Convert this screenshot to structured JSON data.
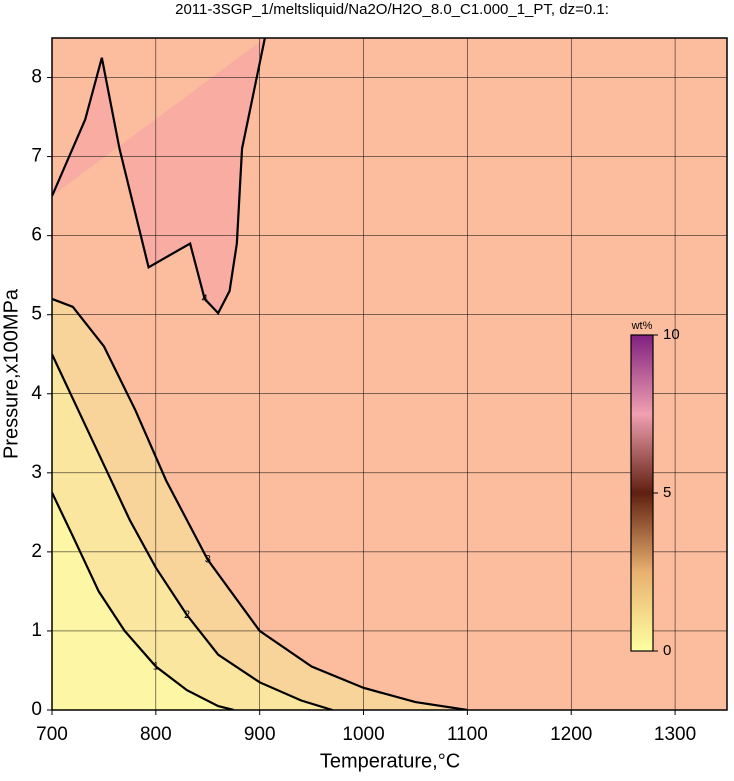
{
  "chart_data": {
    "type": "contour",
    "title": "2011-3SGP_1/meltsliquid/Na2O/H2O_8.0_C1.000_1_PT, dz=0.1:",
    "x_label": "Temperature,°C",
    "y_label": "Pressure,x100MPa",
    "xlim": [
      700,
      1350
    ],
    "ylim": [
      0,
      8.5
    ],
    "xticks": [
      700,
      800,
      900,
      1000,
      1100,
      1200,
      1300
    ],
    "yticks": [
      0,
      1,
      2,
      3,
      4,
      5,
      6,
      7,
      8
    ],
    "grid": true,
    "background": "#fcbd9f",
    "contours": [
      {
        "level": 3,
        "fill": "#f8d49a",
        "closed": false,
        "x": [
          700,
          720,
          750,
          780,
          810,
          850,
          900,
          950,
          1000,
          1050,
          1100
        ],
        "y": [
          5.2,
          5.1,
          4.6,
          3.8,
          2.9,
          1.9,
          1.0,
          0.55,
          0.28,
          0.1,
          0
        ]
      },
      {
        "level": 2,
        "fill": "#fbe6a0",
        "closed": false,
        "x": [
          700,
          725,
          750,
          775,
          800,
          830,
          860,
          900,
          940,
          970
        ],
        "y": [
          4.5,
          3.8,
          3.1,
          2.4,
          1.8,
          1.2,
          0.7,
          0.35,
          0.12,
          0
        ]
      },
      {
        "level": 1,
        "fill": "#fdf6a4",
        "closed": false,
        "x": [
          700,
          720,
          745,
          770,
          800,
          830,
          860,
          875
        ],
        "y": [
          2.75,
          2.2,
          1.5,
          1.0,
          0.55,
          0.25,
          0.05,
          0
        ]
      },
      {
        "level": 4,
        "fill": "#f9aca2",
        "closed": true,
        "x": [
          700,
          732,
          748,
          765,
          793,
          833,
          847,
          860,
          871,
          878,
          883,
          905
        ],
        "y": [
          6.5,
          7.47,
          8.25,
          7.1,
          5.6,
          5.9,
          5.2,
          5.02,
          5.3,
          5.9,
          7.1,
          8.5
        ]
      }
    ],
    "colorbar": {
      "label": "wt%",
      "lim": [
        0,
        10
      ],
      "ticks": [
        0,
        5,
        10
      ],
      "stops": [
        {
          "value": 0,
          "color": "#ffffa0"
        },
        {
          "value": 2.5,
          "color": "#e8b070"
        },
        {
          "value": 5,
          "color": "#602010"
        },
        {
          "value": 7.5,
          "color": "#f0a0b0"
        },
        {
          "value": 10,
          "color": "#802080"
        }
      ]
    }
  }
}
